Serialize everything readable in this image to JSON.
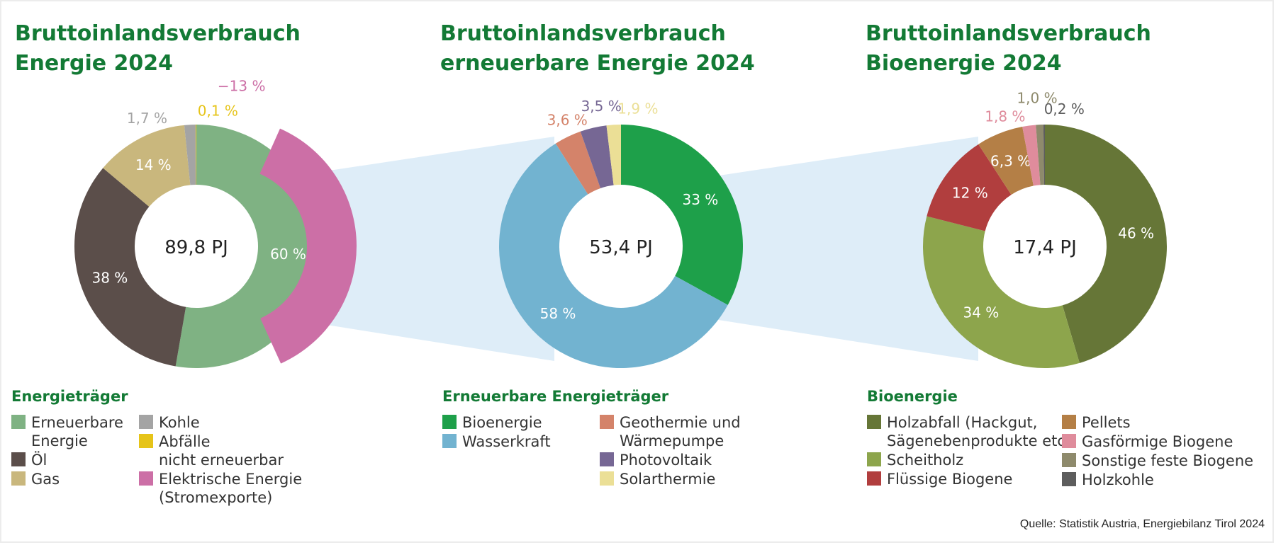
{
  "source": "Quelle: Statistik Austria, Energiebilanz Tirol 2024",
  "chart_data": [
    {
      "type": "pie",
      "title_lines": [
        "Bruttoinlandsverbrauch",
        "Energie 2024"
      ],
      "center_label": "89,8 PJ",
      "legend_title": "Energieträger",
      "segments": [
        {
          "label_lines": [
            "Erneuerbare",
            "Energie"
          ],
          "value": 60,
          "text": "60 %",
          "color": "#7fb283"
        },
        {
          "label_lines": [
            "Öl"
          ],
          "value": 38,
          "text": "38 %",
          "color": "#5b4e4a"
        },
        {
          "label_lines": [
            "Gas"
          ],
          "value": 14,
          "text": "14 %",
          "color": "#c9b77d"
        },
        {
          "label_lines": [
            "Kohle"
          ],
          "value": 1.7,
          "text": "1,7 %",
          "color": "#a4a4a4"
        },
        {
          "label_lines": [
            "Abfälle",
            "nicht erneuerbar"
          ],
          "value": 0.1,
          "text": "0,1 %",
          "color": "#e6c419"
        },
        {
          "label_lines": [
            "Elektrische Energie",
            "(Stromexporte)"
          ],
          "value": -13,
          "text": "−13 %",
          "color": "#cc6fa6"
        }
      ]
    },
    {
      "type": "pie",
      "title_lines": [
        "Bruttoinlandsverbrauch",
        "erneuerbare Energie 2024"
      ],
      "center_label": "53,4 PJ",
      "legend_title": "Erneuerbare Energieträger",
      "segments": [
        {
          "label_lines": [
            "Bioenergie"
          ],
          "value": 33,
          "text": "33 %",
          "color": "#1ea04a"
        },
        {
          "label_lines": [
            "Wasserkraft"
          ],
          "value": 58,
          "text": "58 %",
          "color": "#72b3d0"
        },
        {
          "label_lines": [
            "Geothermie und",
            "Wärmepumpe"
          ],
          "value": 3.6,
          "text": "3,6 %",
          "color": "#d4836a"
        },
        {
          "label_lines": [
            "Photovoltaik"
          ],
          "value": 3.5,
          "text": "3,5 %",
          "color": "#766794"
        },
        {
          "label_lines": [
            "Solarthermie"
          ],
          "value": 1.9,
          "text": "1,9 %",
          "color": "#ebdf96"
        }
      ]
    },
    {
      "type": "pie",
      "title_lines": [
        "Bruttoinlandsverbrauch",
        "Bioenergie 2024"
      ],
      "center_label": "17,4 PJ",
      "legend_title": "Bioenergie",
      "segments": [
        {
          "label_lines": [
            "Holzabfall (Hackgut,",
            "Sägenebenprodukte etc.)"
          ],
          "value": 46,
          "text": "46 %",
          "color": "#667637"
        },
        {
          "label_lines": [
            "Scheitholz"
          ],
          "value": 34,
          "text": "34 %",
          "color": "#8da54c"
        },
        {
          "label_lines": [
            "Flüssige Biogene"
          ],
          "value": 12,
          "text": "12 %",
          "color": "#b13e3e"
        },
        {
          "label_lines": [
            "Pellets"
          ],
          "value": 6.3,
          "text": "6,3 %",
          "color": "#b47f46"
        },
        {
          "label_lines": [
            "Gasförmige Biogene"
          ],
          "value": 1.8,
          "text": "1,8 %",
          "color": "#df8c9c"
        },
        {
          "label_lines": [
            "Sonstige feste Biogene"
          ],
          "value": 1.0,
          "text": "1,0 %",
          "color": "#8e8a6c"
        },
        {
          "label_lines": [
            "Holzkohle"
          ],
          "value": 0.2,
          "text": "0,2 %",
          "color": "#5d5d5d"
        }
      ]
    }
  ]
}
